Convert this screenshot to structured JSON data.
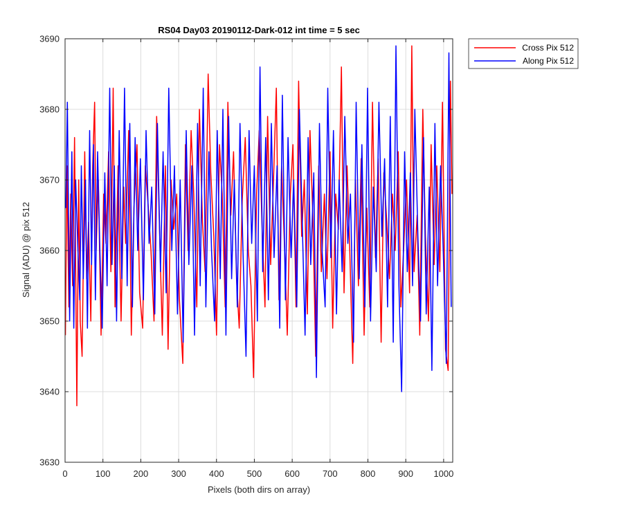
{
  "chart_data": {
    "type": "line",
    "title": "RS04 Day03 20190112-Dark-012 int time = 5 sec",
    "xlabel": "Pixels (both dirs on array)",
    "ylabel": "Signal (ADU) @ pix 512",
    "xlim": [
      0,
      1024
    ],
    "ylim": [
      3630,
      3690
    ],
    "xticks": [
      0,
      100,
      200,
      300,
      400,
      500,
      600,
      700,
      800,
      900,
      1000
    ],
    "yticks": [
      3630,
      3640,
      3650,
      3660,
      3670,
      3680,
      3690
    ],
    "grid": true,
    "legend_position": "outside-top-right",
    "series": [
      {
        "name": "Cross Pix 512",
        "color": "#ff0000",
        "x": [
          1,
          5,
          10,
          15,
          20,
          25,
          31,
          36,
          40,
          45,
          52,
          57,
          62,
          68,
          73,
          78,
          82,
          88,
          95,
          102,
          108,
          115,
          121,
          127,
          132,
          140,
          148,
          155,
          160,
          168,
          175,
          182,
          190,
          197,
          205,
          212,
          220,
          227,
          235,
          242,
          250,
          257,
          265,
          272,
          280,
          287,
          295,
          302,
          311,
          318,
          325,
          333,
          340,
          348,
          355,
          363,
          370,
          378,
          385,
          393,
          400,
          408,
          415,
          423,
          430,
          438,
          445,
          453,
          460,
          468,
          476,
          484,
          491,
          498,
          506,
          513,
          520,
          528,
          535,
          543,
          550,
          558,
          565,
          572,
          580,
          587,
          595,
          602,
          610,
          617,
          625,
          632,
          640,
          647,
          655,
          662,
          670,
          677,
          685,
          692,
          700,
          707,
          715,
          722,
          730,
          737,
          745,
          752,
          760,
          767,
          775,
          782,
          790,
          797,
          805,
          812,
          820,
          827,
          835,
          842,
          850,
          857,
          865,
          872,
          880,
          887,
          895,
          902,
          910,
          916,
          922,
          930,
          937,
          945,
          952,
          960,
          967,
          975,
          982,
          990,
          997,
          1005,
          1012,
          1018,
          1022
        ],
        "values": [
          3648,
          3672,
          3652,
          3668,
          3655,
          3676,
          3638,
          3670,
          3650,
          3645,
          3674,
          3656,
          3664,
          3650,
          3672,
          3681,
          3660,
          3670,
          3648,
          3668,
          3661,
          3674,
          3657,
          3683,
          3652,
          3672,
          3650,
          3669,
          3661,
          3677,
          3648,
          3666,
          3675,
          3654,
          3649,
          3672,
          3666,
          3660,
          3650,
          3679,
          3662,
          3648,
          3672,
          3646,
          3670,
          3663,
          3668,
          3653,
          3644,
          3675,
          3660,
          3677,
          3668,
          3652,
          3680,
          3664,
          3657,
          3685,
          3671,
          3662,
          3648,
          3675,
          3668,
          3652,
          3681,
          3665,
          3674,
          3656,
          3649,
          3667,
          3676,
          3660,
          3655,
          3642,
          3668,
          3677,
          3664,
          3652,
          3679,
          3658,
          3669,
          3683,
          3653,
          3672,
          3660,
          3648,
          3668,
          3675,
          3652,
          3684,
          3662,
          3670,
          3651,
          3677,
          3664,
          3645,
          3672,
          3657,
          3668,
          3656,
          3674,
          3649,
          3668,
          3663,
          3686,
          3654,
          3672,
          3660,
          3644,
          3670,
          3655,
          3673,
          3648,
          3666,
          3652,
          3681,
          3659,
          3673,
          3647,
          3671,
          3664,
          3656,
          3668,
          3660,
          3674,
          3652,
          3661,
          3670,
          3654,
          3689,
          3657,
          3665,
          3648,
          3680,
          3662,
          3650,
          3675,
          3658,
          3672,
          3657,
          3681,
          3646,
          3643,
          3684,
          3668
        ]
      },
      {
        "name": "Along Pix 512",
        "color": "#0000ff",
        "x": [
          2,
          6,
          12,
          18,
          23,
          28,
          34,
          39,
          43,
          48,
          54,
          59,
          65,
          70,
          75,
          80,
          86,
          92,
          98,
          105,
          111,
          118,
          124,
          130,
          136,
          143,
          150,
          157,
          164,
          171,
          178,
          185,
          192,
          199,
          207,
          214,
          222,
          229,
          237,
          244,
          252,
          259,
          267,
          274,
          282,
          289,
          297,
          304,
          312,
          320,
          327,
          335,
          342,
          350,
          357,
          365,
          372,
          380,
          387,
          395,
          402,
          410,
          417,
          425,
          432,
          440,
          447,
          455,
          462,
          470,
          478,
          486,
          493,
          500,
          508,
          515,
          522,
          530,
          537,
          545,
          552,
          560,
          567,
          574,
          582,
          589,
          597,
          604,
          612,
          619,
          627,
          634,
          642,
          649,
          657,
          664,
          672,
          679,
          687,
          694,
          702,
          709,
          717,
          724,
          732,
          739,
          747,
          754,
          762,
          769,
          777,
          784,
          792,
          799,
          807,
          814,
          822,
          829,
          837,
          844,
          852,
          859,
          867,
          874,
          882,
          889,
          897,
          904,
          912,
          918,
          924,
          932,
          939,
          947,
          954,
          962,
          969,
          977,
          984,
          992,
          999,
          1007,
          1014,
          1020
        ],
        "values": [
          3666,
          3681,
          3650,
          3674,
          3649,
          3670,
          3660,
          3653,
          3672,
          3656,
          3670,
          3649,
          3677,
          3658,
          3675,
          3653,
          3674,
          3660,
          3649,
          3671,
          3655,
          3683,
          3658,
          3672,
          3650,
          3677,
          3656,
          3683,
          3655,
          3678,
          3652,
          3676,
          3660,
          3673,
          3653,
          3677,
          3661,
          3669,
          3651,
          3678,
          3657,
          3674,
          3654,
          3683,
          3660,
          3672,
          3651,
          3670,
          3647,
          3677,
          3658,
          3672,
          3648,
          3678,
          3655,
          3683,
          3652,
          3674,
          3660,
          3650,
          3677,
          3656,
          3680,
          3648,
          3679,
          3656,
          3670,
          3652,
          3678,
          3660,
          3645,
          3677,
          3661,
          3672,
          3650,
          3686,
          3657,
          3676,
          3653,
          3678,
          3659,
          3672,
          3649,
          3682,
          3653,
          3676,
          3659,
          3670,
          3652,
          3680,
          3663,
          3648,
          3676,
          3658,
          3671,
          3642,
          3678,
          3660,
          3652,
          3683,
          3659,
          3677,
          3651,
          3670,
          3657,
          3679,
          3661,
          3668,
          3647,
          3681,
          3656,
          3675,
          3652,
          3683,
          3650,
          3669,
          3657,
          3681,
          3662,
          3673,
          3652,
          3679,
          3647,
          3689,
          3655,
          3640,
          3674,
          3657,
          3671,
          3655,
          3680,
          3662,
          3650,
          3676,
          3651,
          3669,
          3643,
          3678,
          3655,
          3672,
          3660,
          3644,
          3688,
          3652
        ]
      }
    ]
  }
}
